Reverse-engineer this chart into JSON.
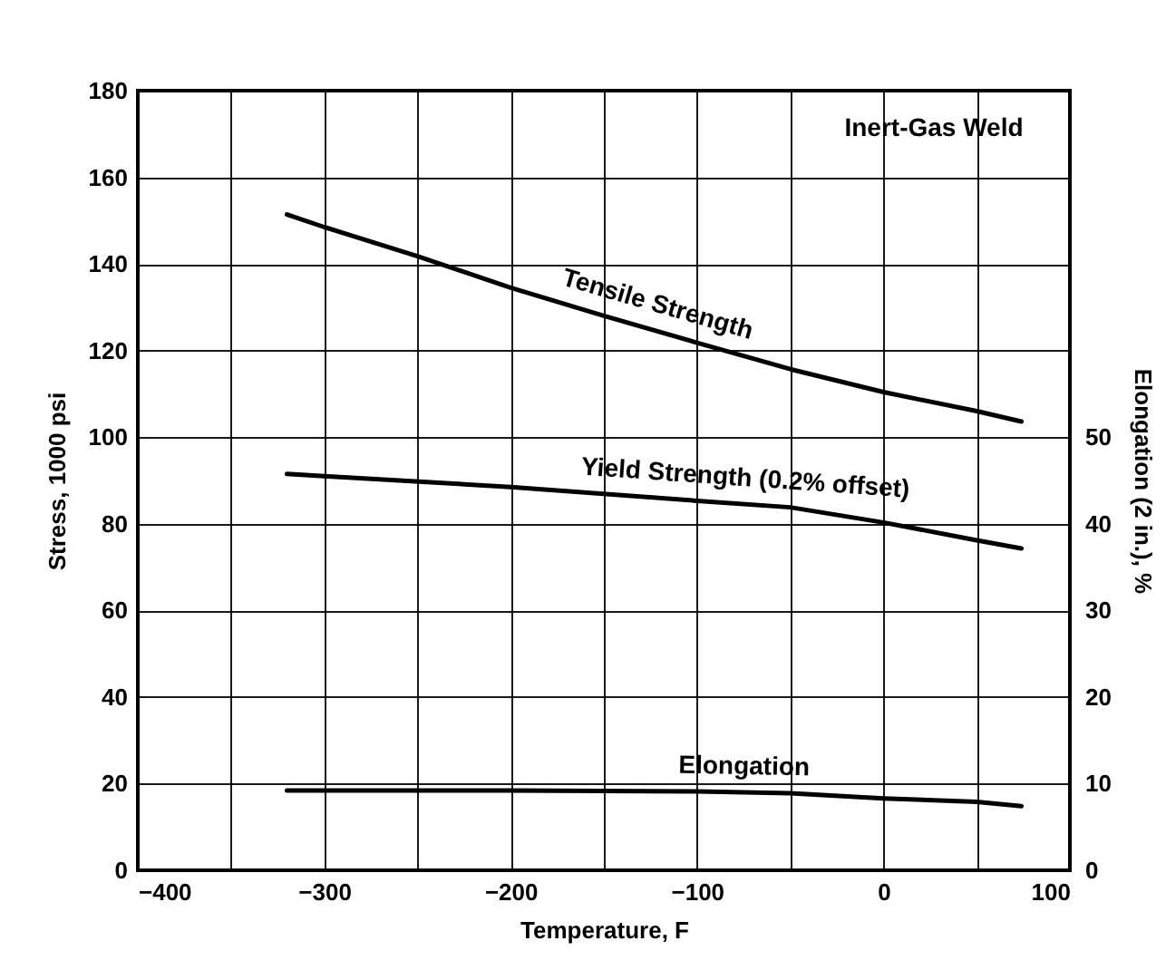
{
  "chart_data": {
    "type": "line",
    "xlabel": "Temperature, F",
    "ylabel": "Stress, 1000 psi",
    "y2label": "Elongation (2 in.), %",
    "annotations": [
      "Inert-Gas Weld"
    ],
    "xlim": [
      -400,
      100
    ],
    "xticks": [
      -400,
      {
        "value": -350,
        "label": null
      },
      -300,
      {
        "value": -250,
        "label": null
      },
      -200,
      {
        "value": -150,
        "label": null
      },
      -100,
      {
        "value": -50,
        "label": null
      },
      0,
      {
        "value": 50,
        "label": null
      },
      100
    ],
    "ylim": [
      0,
      180
    ],
    "yticks": [
      0,
      20,
      40,
      60,
      80,
      100,
      120,
      140,
      160,
      180
    ],
    "y2lim": [
      0,
      90
    ],
    "y2ticks": [
      0,
      10,
      20,
      30,
      40,
      50
    ],
    "grid": true,
    "series": [
      {
        "name": "Tensile Strength",
        "color": "#000000",
        "x": [
          -320,
          -300,
          -250,
          -200,
          -150,
          -100,
          -50,
          0,
          50,
          74
        ],
        "values": [
          151.4,
          148.5,
          141.8,
          134.5,
          128,
          121.8,
          115.7,
          110.4,
          106,
          103.6
        ]
      },
      {
        "name": "Yield Strength (0.2% offset)",
        "color": "#000000",
        "x": [
          -320,
          -300,
          -200,
          -100,
          -50,
          0,
          50,
          74
        ],
        "values": [
          91.5,
          91,
          88.5,
          85.3,
          83.8,
          80.3,
          76.2,
          74.3
        ]
      },
      {
        "name": "Elongation",
        "color": "#000000",
        "axis": "y2",
        "x": [
          -320,
          -200,
          -100,
          -50,
          0,
          50,
          74
        ],
        "values": [
          9.2,
          9.2,
          9.1,
          8.9,
          8.3,
          7.9,
          7.4
        ]
      }
    ]
  }
}
